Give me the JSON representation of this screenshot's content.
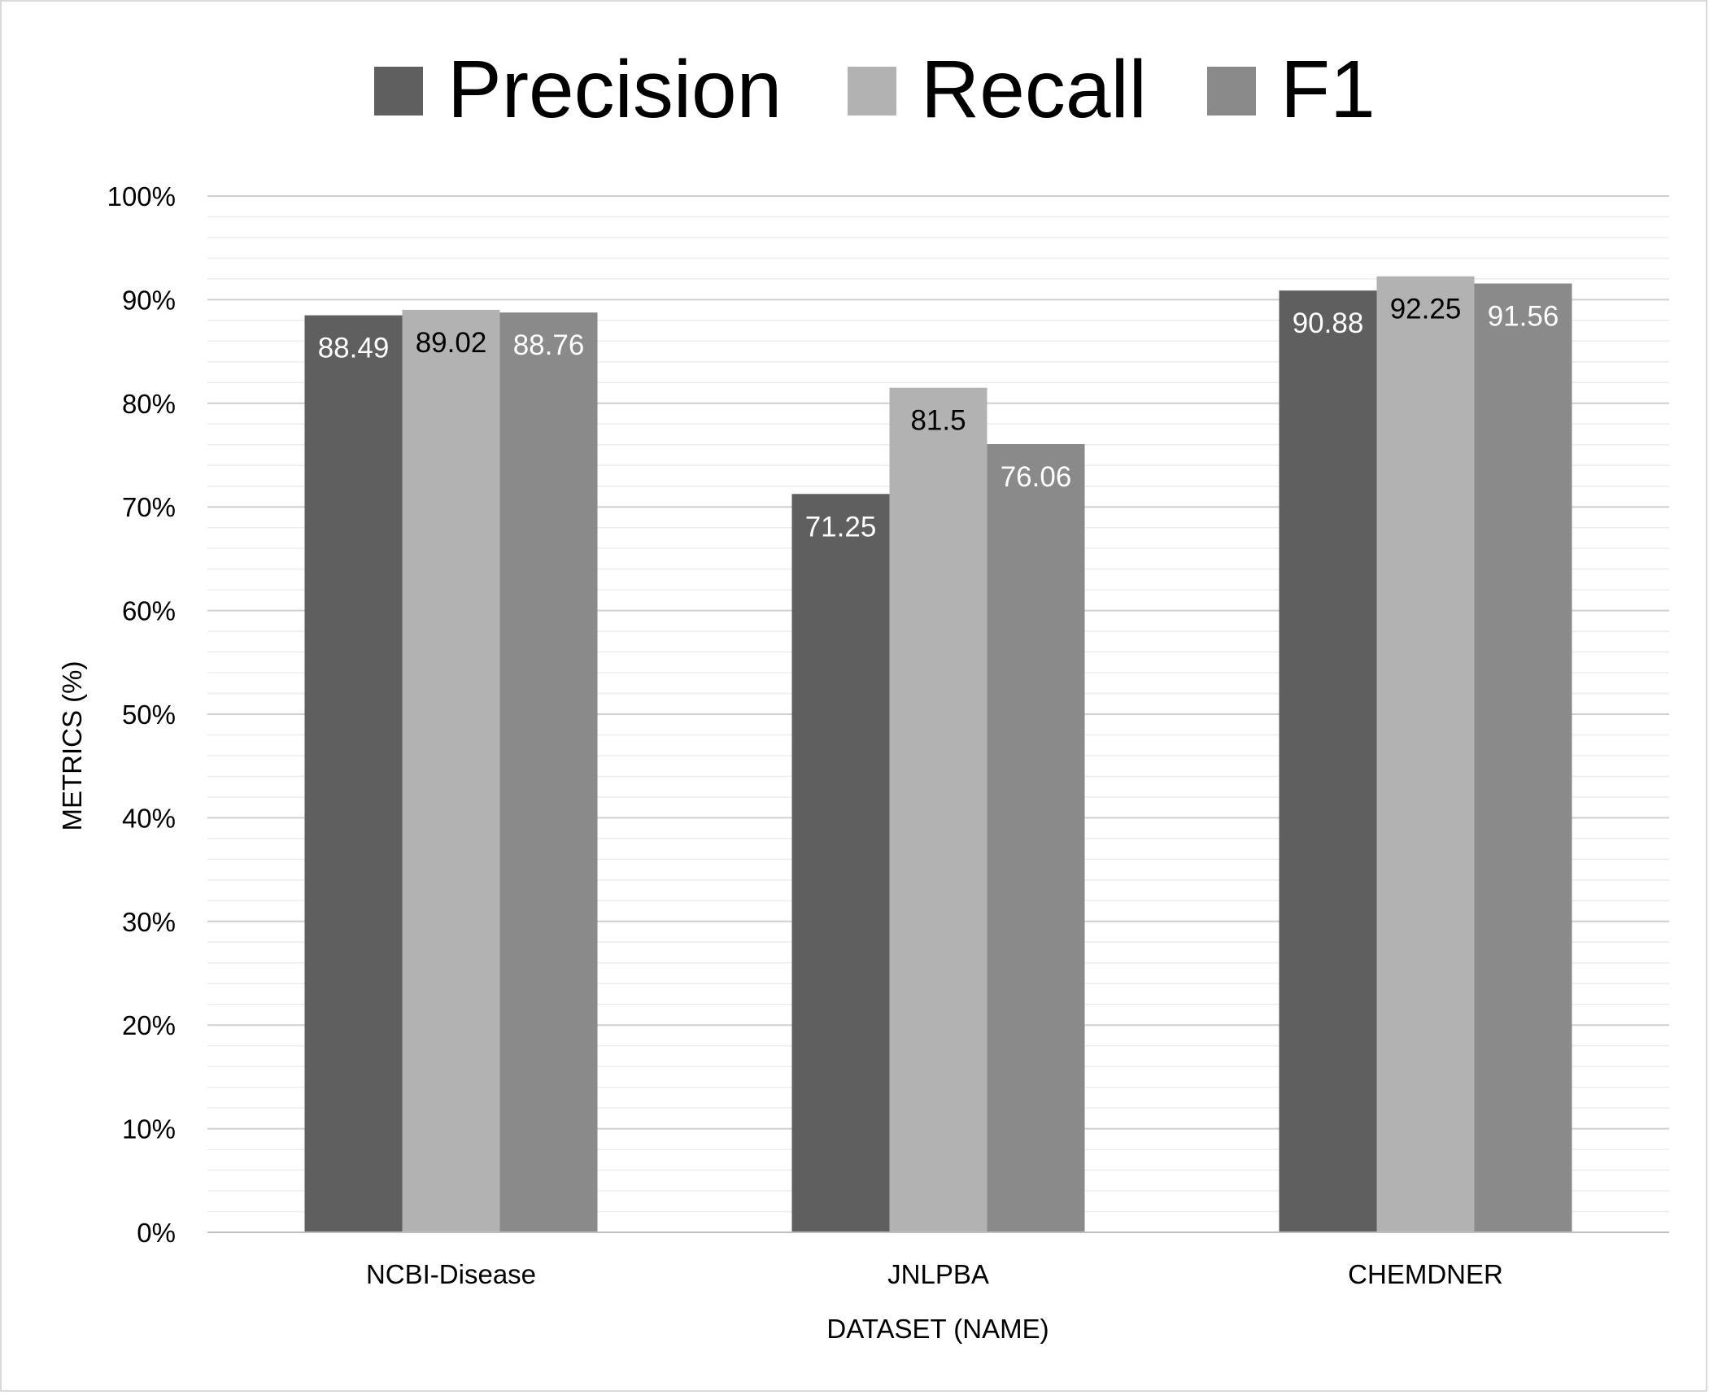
{
  "chart_data": {
    "type": "bar",
    "title": "",
    "xlabel": "DATASET (NAME)",
    "ylabel": "METRICS (%)",
    "ylim": [
      0,
      100
    ],
    "y_ticks": [
      "0%",
      "10%",
      "20%",
      "30%",
      "40%",
      "50%",
      "60%",
      "70%",
      "80%",
      "90%",
      "100%"
    ],
    "grid": true,
    "legend_position": "top",
    "categories": [
      "NCBI-Disease",
      "JNLPBA",
      "CHEMDNER"
    ],
    "series": [
      {
        "name": "Precision",
        "color": "#5f5f5f",
        "label_color": "#ffffff",
        "values": [
          88.49,
          71.25,
          90.88
        ],
        "labels": [
          "88.49",
          "71.25",
          "90.88"
        ]
      },
      {
        "name": "Recall",
        "color": "#b2b2b2",
        "label_color": "#000000",
        "values": [
          89.02,
          81.5,
          92.25
        ],
        "labels": [
          "89.02",
          "81.5",
          "92.25"
        ]
      },
      {
        "name": "F1",
        "color": "#8a8a8a",
        "label_color": "#ffffff",
        "values": [
          88.76,
          76.06,
          91.56
        ],
        "labels": [
          "88.76",
          "76.06",
          "91.56"
        ]
      }
    ]
  }
}
